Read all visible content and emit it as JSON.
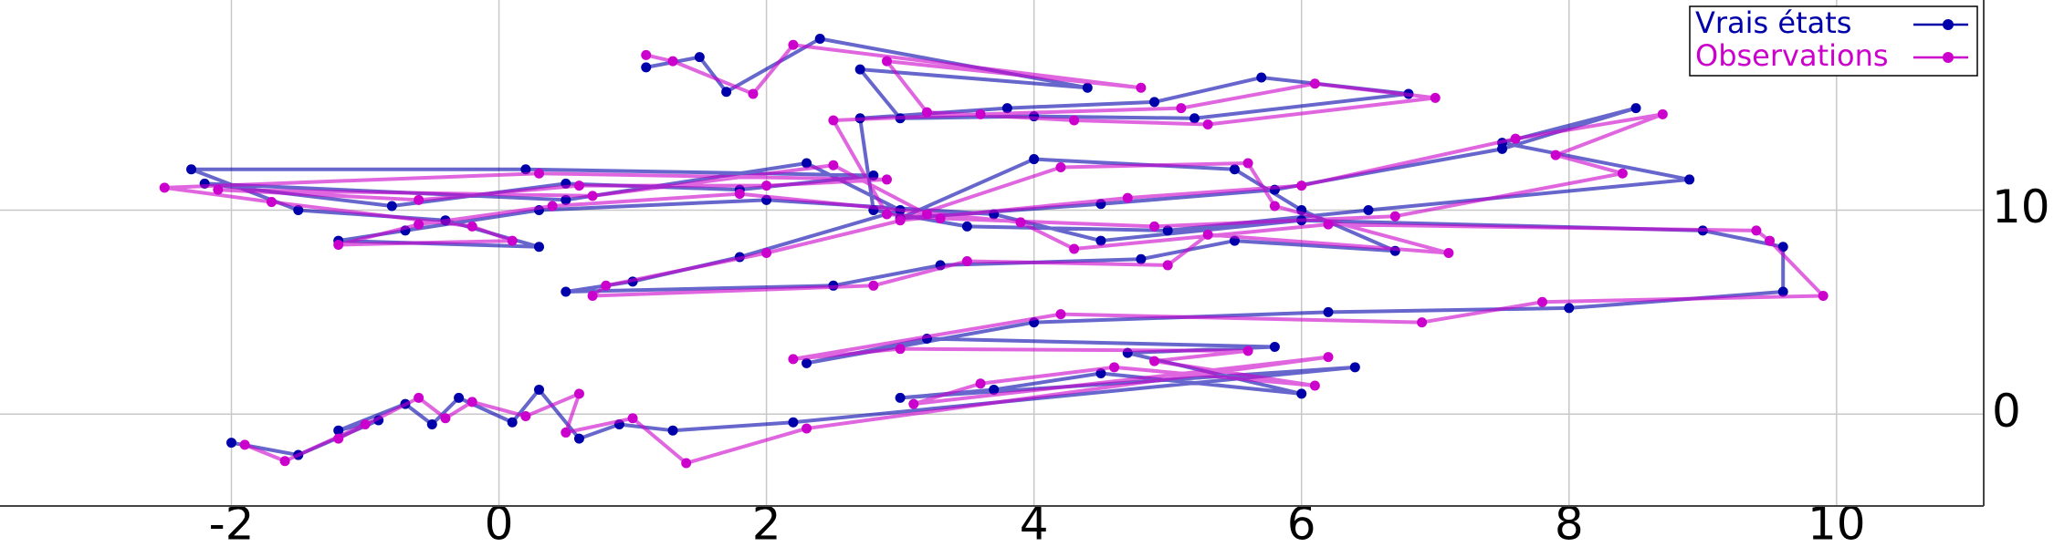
{
  "chart_data": {
    "type": "line",
    "xlim": [
      -3.73,
      11.1
    ],
    "ylim": [
      -4.5,
      20.3
    ],
    "xticks": [
      -2,
      0,
      2,
      4,
      6,
      8,
      10
    ],
    "yticks": [
      0,
      10
    ],
    "grid": true,
    "legend": "upper right",
    "series": [
      {
        "name": "Vrais états",
        "color": "#0000aa",
        "x": [
          -2,
          -1.5,
          -0.9,
          -1.2,
          -0.7,
          -0.5,
          -0.3,
          0.1,
          0.3,
          0.6,
          0.9,
          1.3,
          2.2,
          6.4,
          3,
          3.7,
          4.5,
          6,
          4.7,
          5.8,
          3.2,
          2.3,
          4,
          6.2,
          8,
          9.6,
          9.6,
          9,
          6,
          4.5,
          3.7,
          2,
          0.3,
          -0.7,
          -1.2,
          0.3,
          -0.4,
          -1.5,
          -2.3,
          0.2,
          2.8,
          1.8,
          0.5,
          -0.8,
          -2.2,
          0.5,
          2.3,
          3,
          1.8,
          1,
          0.5,
          2.5,
          3.3,
          4.8,
          5.5,
          6.7,
          6,
          5.5,
          4,
          3,
          4.5,
          5.8,
          7.5,
          8.5,
          7.5,
          8.9,
          6.5,
          5,
          3.5,
          2.8,
          2.7,
          3.8,
          4.9,
          5.7,
          6.8,
          5.2,
          4,
          3,
          2.7,
          4.4,
          2.4,
          1.7,
          1.5,
          1.1
        ],
        "values": [
          -1.4,
          -2,
          -0.3,
          -0.8,
          0.5,
          -0.5,
          0.8,
          -0.4,
          1.2,
          -1.2,
          -0.5,
          -0.8,
          -0.4,
          2.3,
          0.8,
          1.2,
          2,
          1,
          3,
          3.3,
          3.7,
          2.5,
          4.5,
          5,
          5.2,
          6,
          8.2,
          9,
          9.5,
          8.5,
          9.8,
          10.5,
          10,
          9,
          8.5,
          8.2,
          9.5,
          10,
          12,
          12,
          11.7,
          11,
          11.3,
          10.2,
          11.3,
          10.5,
          12.3,
          10,
          7.7,
          6.5,
          6,
          6.3,
          7.3,
          7.6,
          8.5,
          8,
          10,
          12,
          12.5,
          9.6,
          10.3,
          11,
          13,
          15,
          13.3,
          11.5,
          10,
          9,
          9.2,
          10,
          14.5,
          15,
          15.3,
          16.5,
          15.7,
          14.5,
          14.6,
          14.5,
          16.9,
          16,
          18.4,
          15.8,
          17.5,
          17
        ]
      },
      {
        "name": "Observations",
        "color": "#cc00cc",
        "x": [
          -1.9,
          -1.6,
          -1,
          -1.2,
          -0.6,
          -0.4,
          -0.2,
          0.2,
          0.6,
          0.5,
          1,
          1.4,
          2.3,
          6.2,
          3.1,
          3.6,
          4.6,
          6.1,
          4.9,
          5.6,
          3,
          2.2,
          4.2,
          6.9,
          7.8,
          9.9,
          9.5,
          9.4,
          6.2,
          4.3,
          3.9,
          1.8,
          0.4,
          -0.6,
          -1.2,
          0.1,
          -0.2,
          -1.7,
          -2.5,
          0.3,
          2.9,
          2,
          0.6,
          -0.6,
          -2.1,
          0.7,
          2.5,
          3.2,
          2,
          0.8,
          0.7,
          2.8,
          3.5,
          5,
          5.3,
          7.1,
          5.8,
          5.6,
          4.2,
          3,
          4.7,
          6,
          7.6,
          8.7,
          7.9,
          8.4,
          6.7,
          4.9,
          3.3,
          2.9,
          2.5,
          3.6,
          5.1,
          6.1,
          7,
          5.3,
          4.3,
          3.2,
          2.9,
          4.8,
          2.2,
          1.9,
          1.3,
          1.1
        ],
        "values": [
          -1.5,
          -2.3,
          -0.5,
          -1.2,
          0.8,
          -0.2,
          0.6,
          -0.1,
          1,
          -0.9,
          -0.2,
          -2.4,
          -0.7,
          2.8,
          0.5,
          1.5,
          2.3,
          1.4,
          2.6,
          3.1,
          3.2,
          2.7,
          4.9,
          4.5,
          5.5,
          5.8,
          8.5,
          9,
          9.3,
          8.1,
          9.4,
          10.8,
          10.2,
          9.3,
          8.3,
          8.5,
          9.2,
          10.4,
          11.1,
          11.8,
          11.5,
          11.2,
          11.2,
          10.5,
          11,
          10.7,
          12.2,
          9.8,
          7.9,
          6.3,
          5.8,
          6.3,
          7.5,
          7.3,
          8.8,
          7.9,
          10.2,
          12.3,
          12.1,
          9.5,
          10.6,
          11.2,
          13.5,
          14.7,
          12.7,
          11.8,
          9.7,
          9.2,
          9.6,
          9.8,
          14.4,
          14.7,
          15,
          16.2,
          15.5,
          14.2,
          14.4,
          14.8,
          17.3,
          16,
          18.1,
          15.7,
          17.3,
          17.6
        ]
      }
    ]
  }
}
